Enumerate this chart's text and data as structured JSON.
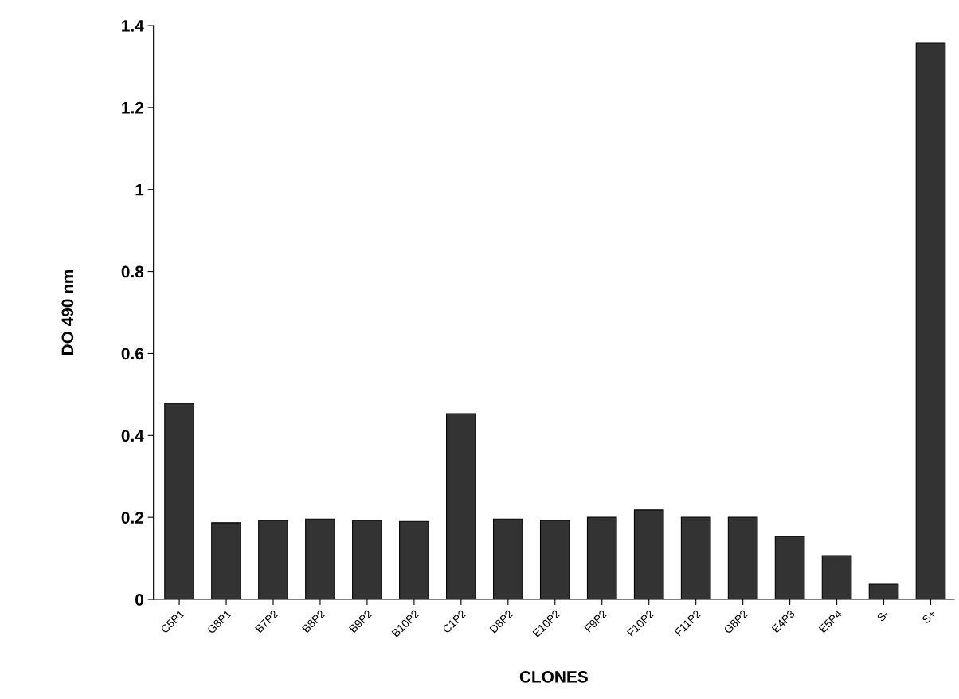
{
  "chart_data": {
    "type": "bar",
    "xlabel": "CLONES",
    "ylabel": "DO 490 nm",
    "categories": [
      "C5P1",
      "G8P1",
      "B7P2",
      "B8P2",
      "B9P2",
      "B10P2",
      "C1P2",
      "D8P2",
      "E10P2",
      "F9P2",
      "F10P2",
      "F11P2",
      "G8P2",
      "E4P3",
      "E5P4",
      "S-",
      "S+"
    ],
    "values": [
      0.478,
      0.187,
      0.192,
      0.196,
      0.192,
      0.19,
      0.453,
      0.196,
      0.192,
      0.2,
      0.218,
      0.2,
      0.2,
      0.154,
      0.107,
      0.037,
      1.357
    ],
    "color": "#333333",
    "ylim": [
      0,
      1.4
    ],
    "yticks": [
      0,
      0.2,
      0.4,
      0.6,
      0.8,
      1,
      1.2,
      1.4
    ],
    "grid": false,
    "legend": false
  }
}
